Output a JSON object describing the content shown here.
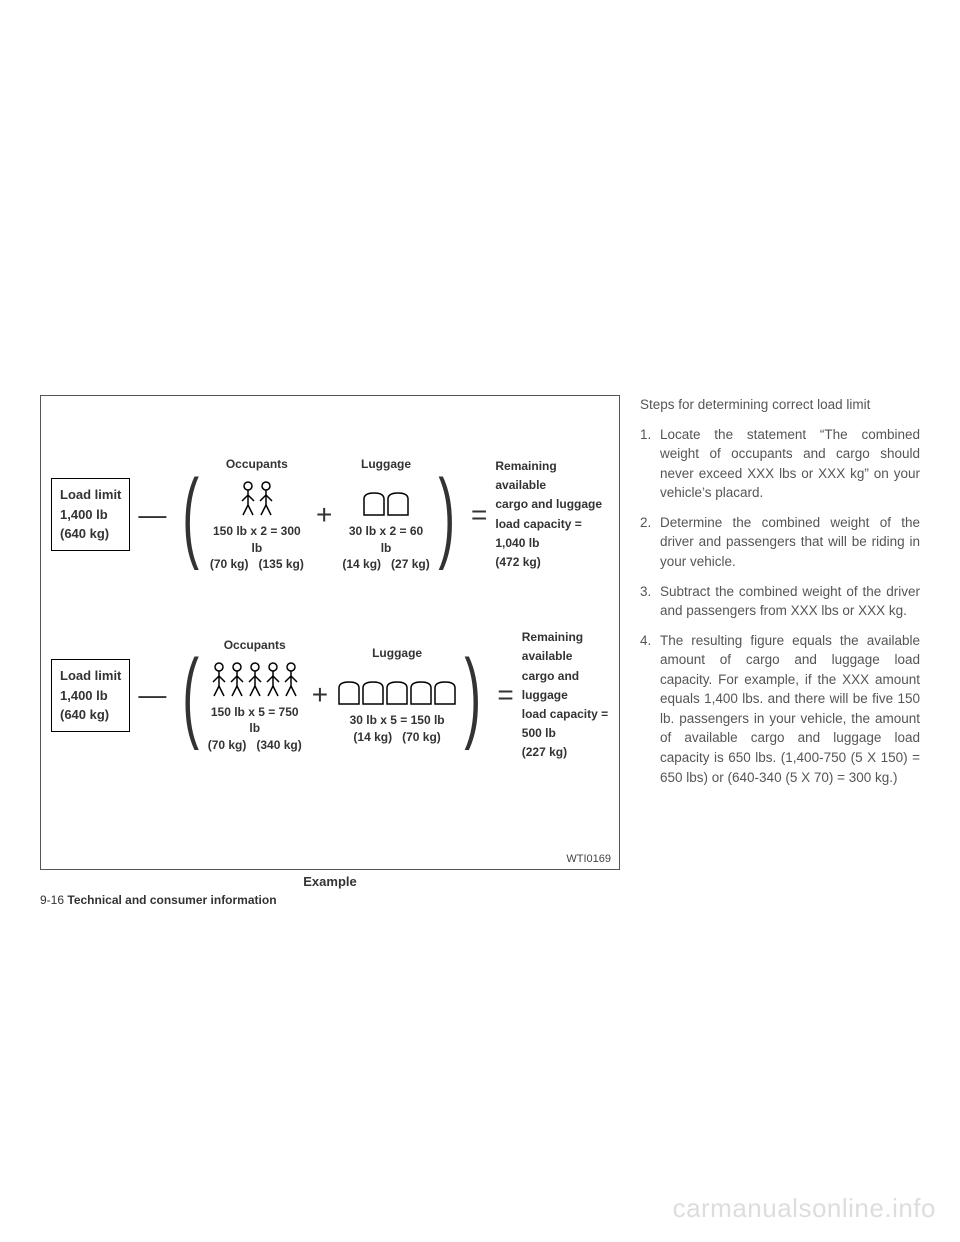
{
  "diagram": {
    "row1": {
      "load_limit": {
        "title": "Load limit",
        "lb": "1,400 lb",
        "kg": "(640 kg)"
      },
      "occupants": {
        "title": "Occupants",
        "count": 2,
        "calc": "150 lb x 2 = 300 lb",
        "kg": "(70 kg)   (135 kg)"
      },
      "luggage": {
        "title": "Luggage",
        "count": 2,
        "calc": "30 lb x 2 = 60 lb",
        "kg": "(14 kg)   (27 kg)"
      },
      "result": {
        "label": "Remaining available\ncargo and luggage\nload capacity =",
        "lb": "1,040 lb",
        "kg": "(472 kg)"
      }
    },
    "row2": {
      "load_limit": {
        "title": "Load limit",
        "lb": "1,400 lb",
        "kg": "(640 kg)"
      },
      "occupants": {
        "title": "Occupants",
        "count": 5,
        "calc": "150 lb x 5 = 750 lb",
        "kg": "(70 kg)   (340 kg)"
      },
      "luggage": {
        "title": "Luggage",
        "count": 5,
        "calc": "30 lb x 5 = 150 lb",
        "kg": "(14 kg)   (70 kg)"
      },
      "result": {
        "label": "Remaining available\ncargo and luggage\nload capacity =",
        "lb": "500 lb",
        "kg": "(227 kg)"
      }
    },
    "figure_code": "WTI0169",
    "caption": "Example"
  },
  "footer": {
    "page_num": "9-16",
    "section": "Technical and consumer information"
  },
  "right": {
    "title": "Steps for determining correct load limit",
    "steps": [
      "Locate the statement “The combined weight of occupants and cargo should never exceed XXX lbs or XXX kg” on your vehicle’s placard.",
      "Determine the combined weight of the driver and passengers that will be riding in your vehicle.",
      "Subtract the combined weight of the driver and passengers from XXX lbs or XXX kg.",
      "The resulting figure equals the available amount of cargo and luggage load capacity. For example, if the XXX amount equals 1,400 lbs. and there will be five 150 lb. passengers in your vehicle, the amount of available cargo and luggage load capacity is 650 lbs. (1,400-750 (5 X 150) = 650 lbs) or (640-340 (5 X 70) = 300 kg.)"
    ]
  },
  "watermark": "carmanualsonline.info",
  "colors": {
    "text": "#333333",
    "border": "#555555",
    "light": "#dddddd"
  }
}
